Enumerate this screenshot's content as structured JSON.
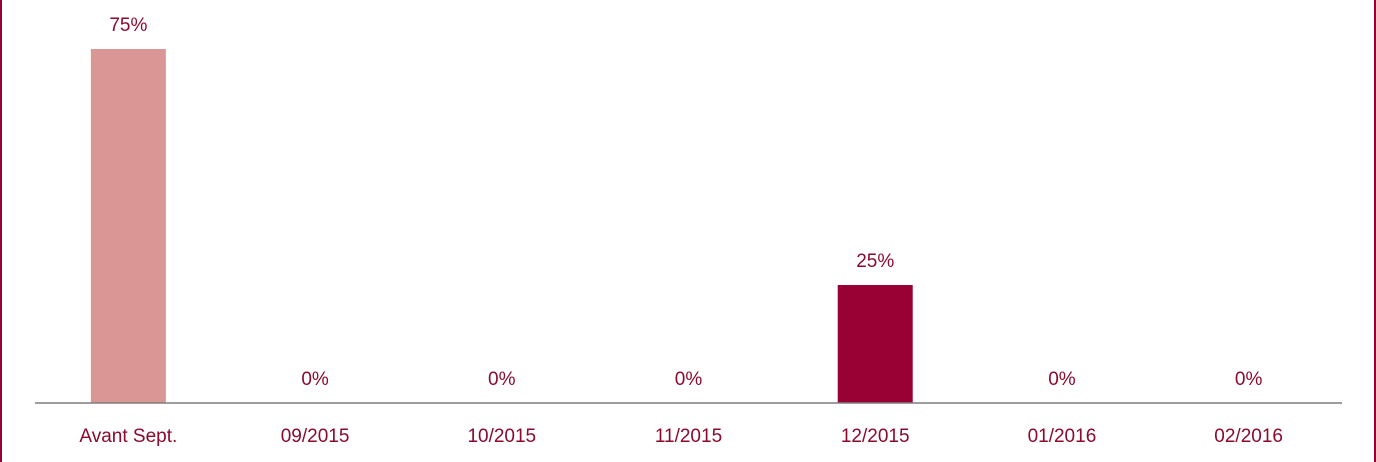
{
  "chart_data": {
    "type": "bar",
    "categories": [
      "Avant Sept.",
      "09/2015",
      "10/2015",
      "11/2015",
      "12/2015",
      "01/2016",
      "02/2016"
    ],
    "values": [
      75,
      0,
      0,
      0,
      25,
      0,
      0
    ],
    "value_labels": [
      "75%",
      "0%",
      "0%",
      "0%",
      "25%",
      "0%",
      "0%"
    ],
    "colors": [
      "#d99694",
      "#d99694",
      "#d99694",
      "#d99694",
      "#990033",
      "#d99694",
      "#d99694"
    ]
  }
}
